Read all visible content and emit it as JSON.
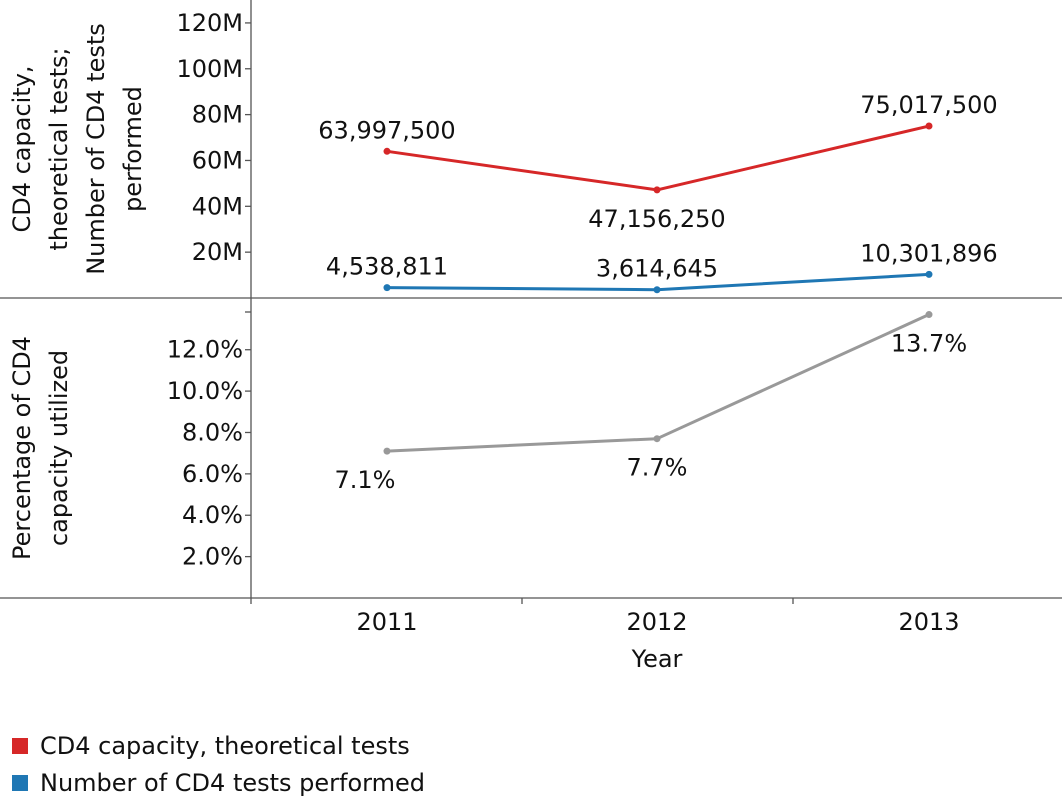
{
  "chart_data": {
    "type": "line",
    "x": [
      "2011",
      "2012",
      "2013"
    ],
    "xlabel": "Year",
    "panels": [
      {
        "ylabel_lines": [
          "CD4 capacity,",
          "theoretical tests;",
          "Number of CD4 tests",
          "performed"
        ],
        "ylim": [
          0,
          130000000
        ],
        "yticks": [
          20000000,
          40000000,
          60000000,
          80000000,
          100000000,
          120000000
        ],
        "yticklabels": [
          "20M",
          "40M",
          "60M",
          "80M",
          "100M",
          "120M"
        ],
        "series": [
          {
            "name": "CD4 capacity, theoretical tests",
            "color": "#d62728",
            "values": [
              63997500,
              47156250,
              75017500
            ],
            "labels": [
              "63,997,500",
              "47,156,250",
              "75,017,500"
            ],
            "label_pos": [
              "above",
              "below",
              "above"
            ]
          },
          {
            "name": "Number of CD4 tests performed",
            "color": "#1f77b4",
            "values": [
              4538811,
              3614645,
              10301896
            ],
            "labels": [
              "4,538,811",
              "3,614,645",
              "10,301,896"
            ],
            "label_pos": [
              "above",
              "above",
              "above"
            ]
          }
        ]
      },
      {
        "ylabel_lines": [
          "Percentage of CD4",
          "capacity utilized"
        ],
        "ylim": [
          0,
          14.5
        ],
        "yticks": [
          2,
          4,
          6,
          8,
          10,
          12
        ],
        "yticklabels": [
          "2.0%",
          "4.0%",
          "6.0%",
          "8.0%",
          "10.0%",
          "12.0%"
        ],
        "series": [
          {
            "name": "",
            "color": "#999999",
            "values": [
              7.1,
              7.7,
              13.7
            ],
            "labels": [
              "7.1%",
              "7.7%",
              "13.7%"
            ],
            "label_pos": [
              "below",
              "below",
              "below"
            ]
          }
        ]
      }
    ],
    "legend": {
      "placement": "bottom-left",
      "entries": [
        {
          "label": "CD4 capacity, theoretical tests",
          "color": "#d62728"
        },
        {
          "label": "Number of CD4 tests performed",
          "color": "#1f77b4"
        }
      ]
    }
  }
}
